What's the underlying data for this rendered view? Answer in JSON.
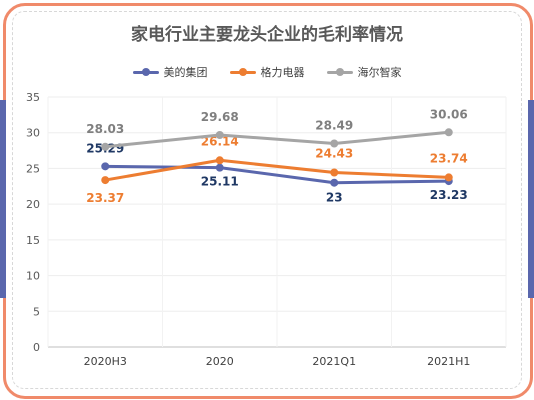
{
  "chart_data": {
    "type": "line",
    "title": "家电行业主要龙头企业的毛利率情况",
    "categories": [
      "2020H3",
      "2020",
      "2021Q1",
      "2021H1"
    ],
    "ylim": [
      0,
      35
    ],
    "yticks": [
      "0",
      "5",
      "10",
      "15",
      "20",
      "25",
      "30",
      "35"
    ],
    "grid": true,
    "legend_position": "top-center",
    "series": [
      {
        "name": "美的集团",
        "values": [
          25.29,
          25.11,
          23,
          23.23
        ],
        "labels": [
          "25.29",
          "25.11",
          "23",
          "23.23"
        ],
        "color": "#5a67ad",
        "label_color": "#1f3864"
      },
      {
        "name": "格力电器",
        "values": [
          23.37,
          26.14,
          24.43,
          23.74
        ],
        "labels": [
          "23.37",
          "26.14",
          "24.43",
          "23.74"
        ],
        "color": "#ed7d31",
        "label_color": "#ed7d31"
      },
      {
        "name": "海尔智家",
        "values": [
          28.03,
          29.68,
          28.49,
          30.06
        ],
        "labels": [
          "28.03",
          "29.68",
          "28.49",
          "30.06"
        ],
        "color": "#a5a5a5",
        "label_color": "#7f7f7f"
      }
    ]
  }
}
